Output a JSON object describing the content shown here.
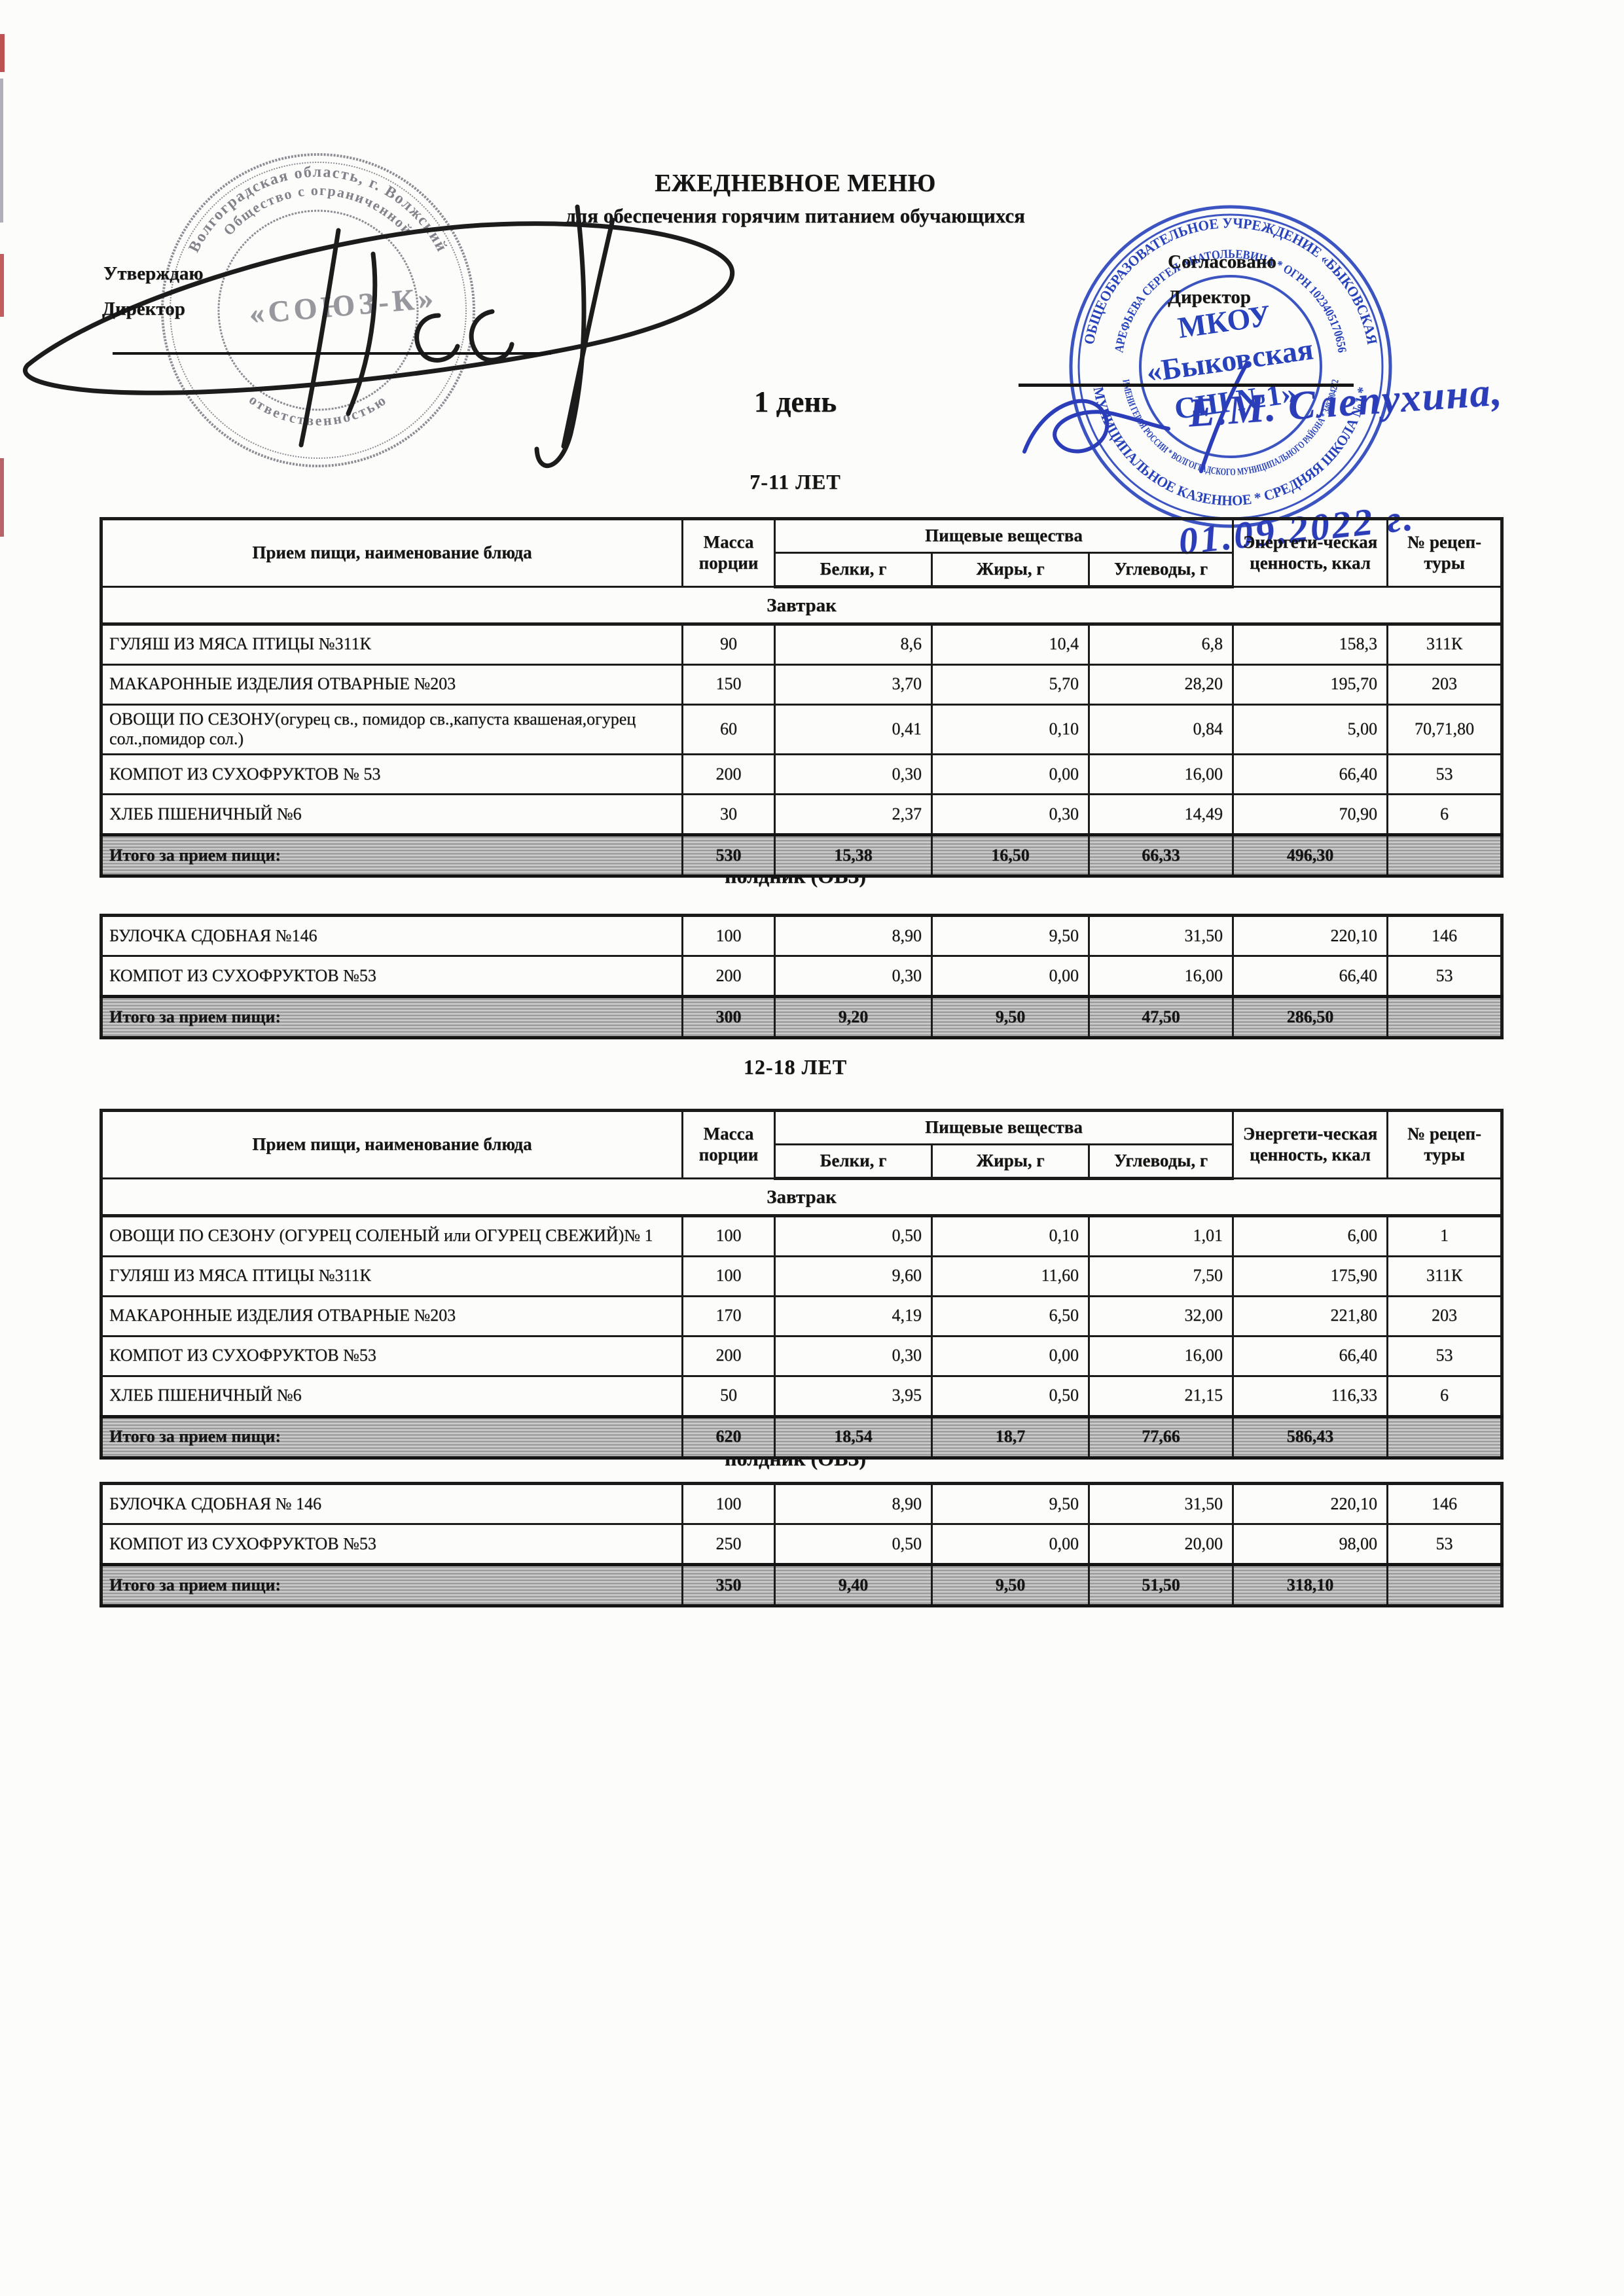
{
  "page": {
    "title": "ЕЖЕДНЕВНОЕ МЕНЮ",
    "subtitle": "для обеспечения горячим питанием обучающихся",
    "day_heading": "1 день"
  },
  "approval_left": {
    "line1": "Утверждаю",
    "line2": "Директор"
  },
  "approval_right": {
    "line1": "Согласовано",
    "line2": "Директор",
    "signature_name": "Е.М. Слепухина,",
    "signature_date": "01.09.2022 г."
  },
  "stamp_left": {
    "arc_top_outer": "Волгоградская область, г. Волжский",
    "arc_top_inner": "Общество с ограниченной",
    "arc_bottom_inner": "ответственностью",
    "center": "«СОЮЗ-К»"
  },
  "stamp_right": {
    "arc_top_outer": "ОБЩЕОБРАЗОВАТЕЛЬНОЕ УЧРЕЖДЕНИЕ «БЫКОВСКАЯ",
    "arc_bottom_outer": "МУНИЦИПАЛЬНОЕ КАЗЕННОЕ * СРЕДНЯЯ ШКОЛА №1 *",
    "arc_top_inner": "АРЕФЬЕВА СЕРГЕЯ АНАТОЛЬЕВИЧА * ОГРН 1023405170656",
    "arc_bottom_inner": "ИМЕНИ ГЕРОЯ РОССИИ * ВОЛГОГРАДСКОГО МУНИЦИПАЛЬНОГО РАЙОНА * 3402004272",
    "center_line1": "МКОУ",
    "center_line2": "«Быковская",
    "center_line3": "СШ №1»",
    "ink_color": "#2742bb"
  },
  "tables": {
    "col_meal": "Прием пищи, наименование блюда",
    "col_mass": "Масса\nпорции",
    "col_nutrients": "Пищевые вещества",
    "col_protein": "Белки, г",
    "col_fat": "Жиры, г",
    "col_carbs": "Углеводы, г",
    "col_energy": "Энергети-ческая\nценность, ккал",
    "col_recipe": "№ рецеп-\nтуры"
  },
  "sections": [
    {
      "age": "7-11 ЛЕТ",
      "breakfast": {
        "meal_label": "Завтрак",
        "rows": [
          [
            "ГУЛЯШ ИЗ МЯСА ПТИЦЫ №311К",
            "90",
            "8,6",
            "10,4",
            "6,8",
            "158,3",
            "311К"
          ],
          [
            "МАКАРОННЫЕ ИЗДЕЛИЯ ОТВАРНЫЕ №203",
            "150",
            "3,70",
            "5,70",
            "28,20",
            "195,70",
            "203"
          ],
          [
            "ОВОЩИ ПО СЕЗОНУ(огурец св., помидор св.,капуста квашеная,огурец сол.,помидор сол.)",
            "60",
            "0,41",
            "0,10",
            "0,84",
            "5,00",
            "70,71,80"
          ],
          [
            "КОМПОТ ИЗ  СУХОФРУКТОВ № 53",
            "200",
            "0,30",
            "0,00",
            "16,00",
            "66,40",
            "53"
          ],
          [
            "ХЛЕБ ПШЕНИЧНЫЙ  №6",
            "30",
            "2,37",
            "0,30",
            "14,49",
            "70,90",
            "6"
          ]
        ],
        "total": [
          "Итого за прием пищи:",
          "530",
          "15,38",
          "16,50",
          "66,33",
          "496,30",
          ""
        ]
      },
      "snack_heading": "полдник (ОВЗ)",
      "snack": {
        "rows": [
          [
            "БУЛОЧКА СДОБНАЯ  №146",
            "100",
            "8,90",
            "9,50",
            "31,50",
            "220,10",
            "146"
          ],
          [
            "КОМПОТ ИЗ СУХОФРУКТОВ №53",
            "200",
            "0,30",
            "0,00",
            "16,00",
            "66,40",
            "53"
          ]
        ],
        "total": [
          "Итого за прием пищи:",
          "300",
          "9,20",
          "9,50",
          "47,50",
          "286,50",
          ""
        ]
      }
    },
    {
      "age": "12-18 ЛЕТ",
      "breakfast": {
        "meal_label": "Завтрак",
        "rows": [
          [
            "ОВОЩИ ПО СЕЗОНУ (ОГУРЕЦ СОЛЕНЫЙ или ОГУРЕЦ СВЕЖИЙ)№ 1",
            "100",
            "0,50",
            "0,10",
            "1,01",
            "6,00",
            "1"
          ],
          [
            "ГУЛЯШ ИЗ МЯСА ПТИЦЫ №311К",
            "100",
            "9,60",
            "11,60",
            "7,50",
            "175,90",
            "311К"
          ],
          [
            "МАКАРОННЫЕ ИЗДЕЛИЯ ОТВАРНЫЕ  №203",
            "170",
            "4,19",
            "6,50",
            "32,00",
            "221,80",
            "203"
          ],
          [
            "КОМПОТ ИЗ СУХОФРУКТОВ №53",
            "200",
            "0,30",
            "0,00",
            "16,00",
            "66,40",
            "53"
          ],
          [
            "ХЛЕБ ПШЕНИЧНЫЙ №6",
            "50",
            "3,95",
            "0,50",
            "21,15",
            "116,33",
            "6"
          ]
        ],
        "total": [
          "Итого за прием пищи:",
          "620",
          "18,54",
          "18,7",
          "77,66",
          "586,43",
          ""
        ]
      },
      "snack_heading": "полдник (ОВЗ)",
      "snack": {
        "rows": [
          [
            "БУЛОЧКА СДОБНАЯ № 146",
            "100",
            "8,90",
            "9,50",
            "31,50",
            "220,10",
            "146"
          ],
          [
            "КОМПОТ ИЗ СУХОФРУКТОВ №53",
            "250",
            "0,50",
            "0,00",
            "20,00",
            "98,00",
            "53"
          ]
        ],
        "total": [
          "Итого за прием пищи:",
          "350",
          "9,40",
          "9,50",
          "51,50",
          "318,10",
          ""
        ]
      }
    }
  ]
}
